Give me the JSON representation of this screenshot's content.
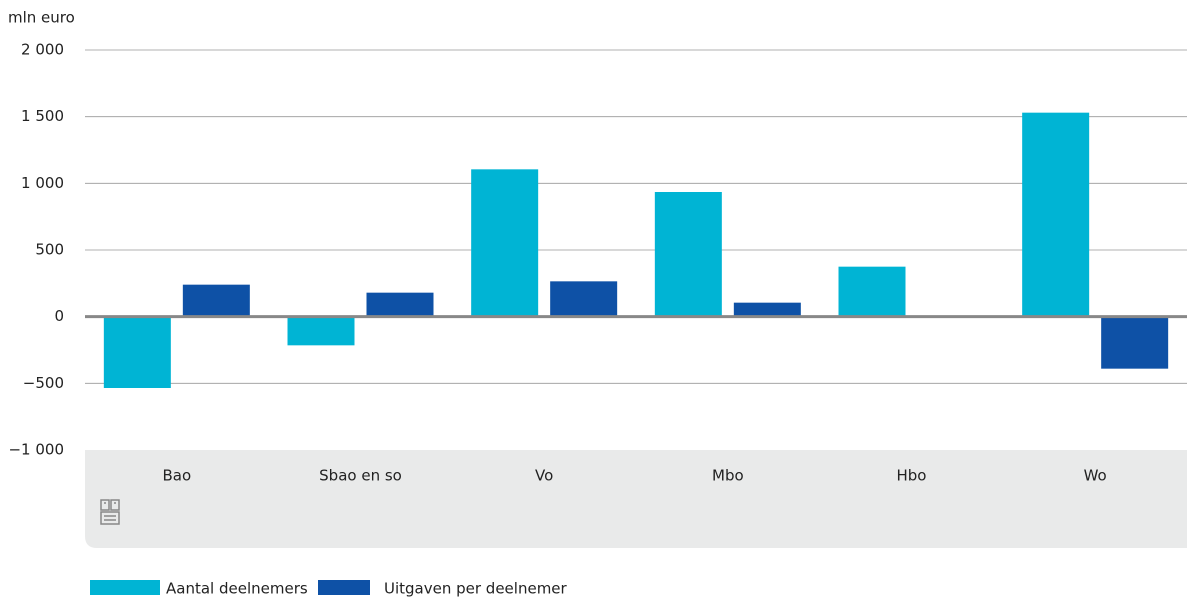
{
  "chart_data": {
    "type": "bar",
    "y_axis_label": "mln euro",
    "categories": [
      "Bao",
      "Sbao en so",
      "Vo",
      "Mbo",
      "Hbo",
      "Wo"
    ],
    "series": [
      {
        "name": "Aantal deelnemers",
        "color": "#00b4d4",
        "values": [
          -535,
          -215,
          1105,
          935,
          375,
          1530
        ]
      },
      {
        "name": "Uitgaven per deelnemer",
        "color": "#0e51a6",
        "values": [
          240,
          180,
          265,
          105,
          0,
          -390
        ]
      }
    ],
    "ylim": [
      -1000,
      2000
    ],
    "yticks": [
      {
        "value": -1000,
        "label": "−1 000"
      },
      {
        "value": -500,
        "label": "−500"
      },
      0,
      500,
      {
        "value": 1000,
        "label": "1 000"
      },
      {
        "value": 1500,
        "label": "1 500"
      },
      {
        "value": 2000,
        "label": "2 000"
      }
    ],
    "grid": true
  }
}
